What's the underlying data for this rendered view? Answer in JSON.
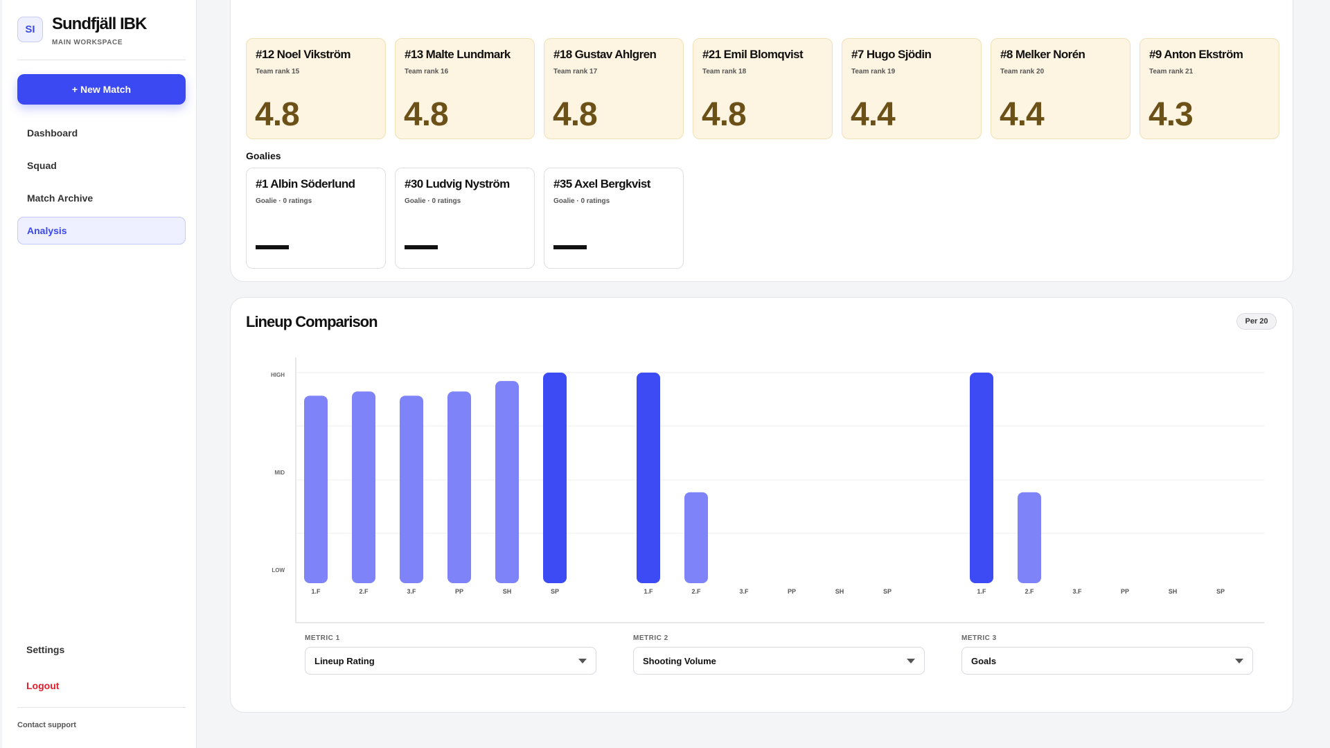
{
  "sidebar": {
    "badge": "SI",
    "team_name": "Sundfjäll IBK",
    "workspace": "MAIN WORKSPACE",
    "new_match": "+ New Match",
    "nav": [
      "Dashboard",
      "Squad",
      "Match Archive",
      "Analysis"
    ],
    "active_nav": "Analysis",
    "settings": "Settings",
    "logout": "Logout",
    "support": "Contact support"
  },
  "players": [
    {
      "name": "#12 Noel Vikström",
      "sub": "Team rank 15",
      "value": "4.8"
    },
    {
      "name": "#13 Malte Lundmark",
      "sub": "Team rank 16",
      "value": "4.8"
    },
    {
      "name": "#18 Gustav Ahlgren",
      "sub": "Team rank 17",
      "value": "4.8"
    },
    {
      "name": "#21 Emil Blomqvist",
      "sub": "Team rank 18",
      "value": "4.8"
    },
    {
      "name": "#7 Hugo Sjödin",
      "sub": "Team rank 19",
      "value": "4.4"
    },
    {
      "name": "#8 Melker Norén",
      "sub": "Team rank 20",
      "value": "4.4"
    },
    {
      "name": "#9 Anton Ekström",
      "sub": "Team rank 21",
      "value": "4.3"
    }
  ],
  "goalies_title": "Goalies",
  "goalies": [
    {
      "name": "#1 Albin Söderlund",
      "sub": "Goalie · 0 ratings"
    },
    {
      "name": "#30 Ludvig Nyström",
      "sub": "Goalie · 0 ratings"
    },
    {
      "name": "#35 Axel Bergkvist",
      "sub": "Goalie · 0 ratings"
    }
  ],
  "comparison": {
    "title": "Lineup Comparison",
    "badge": "Per 20",
    "metrics": [
      {
        "label": "METRIC 1",
        "value": "Lineup Rating"
      },
      {
        "label": "METRIC 2",
        "value": "Shooting Volume"
      },
      {
        "label": "METRIC 3",
        "value": "Goals"
      }
    ]
  },
  "colors": {
    "highlight": "#3d4bf5",
    "normal": "#7e84f8",
    "accent": "#3b49f2",
    "card_bg": "#fdf4e1",
    "card_value": "#6b5117"
  },
  "chart_data": {
    "type": "bar",
    "y_tick_labels": [
      "HIGH",
      "MID",
      "LOW"
    ],
    "ylim": [
      0,
      1
    ],
    "categories": [
      "1.F",
      "2.F",
      "3.F",
      "PP",
      "SH",
      "SP"
    ],
    "groups": [
      {
        "metric": "Lineup Rating",
        "values": [
          0.89,
          0.91,
          0.89,
          0.91,
          0.96,
          1.0
        ],
        "highlight_index": 5
      },
      {
        "metric": "Shooting Volume",
        "values": [
          1.0,
          0.43,
          0,
          0,
          0,
          0
        ],
        "highlight_index": 0
      },
      {
        "metric": "Goals",
        "values": [
          1.0,
          0.43,
          0,
          0,
          0,
          0
        ],
        "highlight_index": 0
      }
    ]
  }
}
